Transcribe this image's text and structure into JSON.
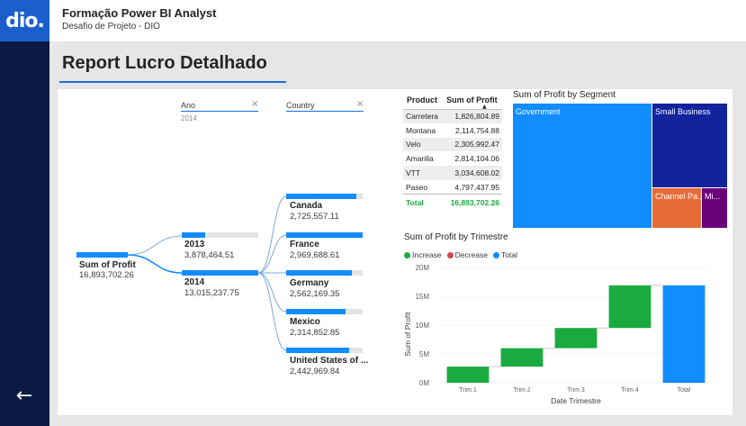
{
  "header": {
    "logo_text": "dio.",
    "app_title": "Formação Power BI Analyst",
    "app_subtitle": "Desafio de Projeto - DIO"
  },
  "report": {
    "title": "Report Lucro Detalhado"
  },
  "nav": {
    "back_icon": "arrow-left-icon",
    "back_glyph": "←"
  },
  "colors": {
    "accent": "#118dff",
    "rail": "#0b1a43",
    "increase": "#1aab40",
    "decrease": "#d64554",
    "total": "#118dff"
  },
  "decomp_tree": {
    "root": {
      "label": "Sum of Profit",
      "value": "16,893,702.26",
      "fill": 1.0
    },
    "level1": {
      "header": "Ano",
      "selected": "2014",
      "items": [
        {
          "label": "2013",
          "value": "3,878,464.51",
          "fill": 0.3
        },
        {
          "label": "2014",
          "value": "13,015,237.75",
          "fill": 1.0
        }
      ]
    },
    "level2": {
      "header": "Country",
      "items": [
        {
          "label": "Canada",
          "value": "2,725,557.11",
          "fill": 0.92
        },
        {
          "label": "France",
          "value": "2,969,688.61",
          "fill": 1.0
        },
        {
          "label": "Germany",
          "value": "2,562,169.35",
          "fill": 0.86
        },
        {
          "label": "Mexico",
          "value": "2,314,852.85",
          "fill": 0.78
        },
        {
          "label": "United States of ...",
          "value": "2,442,969.84",
          "fill": 0.82
        }
      ]
    }
  },
  "product_table": {
    "columns": [
      "Product",
      "Sum of Profit"
    ],
    "sort_indicator": "▲",
    "rows": [
      [
        "Carretera",
        "1,826,804.89"
      ],
      [
        "Montana",
        "2,114,754.88"
      ],
      [
        "Velo",
        "2,305,992.47"
      ],
      [
        "Amarilla",
        "2,814,104.06"
      ],
      [
        "VTT",
        "3,034,608.02"
      ],
      [
        "Paseo",
        "4,797,437.95"
      ]
    ],
    "total": [
      "Total",
      "16,893,702.26"
    ]
  },
  "treemap": {
    "title": "Sum of Profit by Segment",
    "segments": [
      {
        "label": "Government",
        "color": "#118dff"
      },
      {
        "label": "Small Business",
        "color": "#12239e"
      },
      {
        "label": "Channel Pa...",
        "color": "#e66c37"
      },
      {
        "label": "Mi...",
        "color": "#6b007b"
      }
    ]
  },
  "chart_data": {
    "type": "waterfall",
    "title": "Sum of Profit by Trimestre",
    "xlabel": "Date Trimestre",
    "ylabel": "Sum of Profit",
    "legend": [
      "Increase",
      "Decrease",
      "Total"
    ],
    "legend_position": "top-left",
    "categories": [
      "Trim 1",
      "Trim 2",
      "Trim 3",
      "Trim 4",
      "Total"
    ],
    "values": [
      2.8,
      3.2,
      3.5,
      7.4,
      16.9
    ],
    "kinds": [
      "increase",
      "increase",
      "increase",
      "increase",
      "total"
    ],
    "y_ticks": [
      "0M",
      "5M",
      "10M",
      "15M",
      "20M"
    ],
    "ylim": [
      0,
      20
    ],
    "unit": "M"
  }
}
